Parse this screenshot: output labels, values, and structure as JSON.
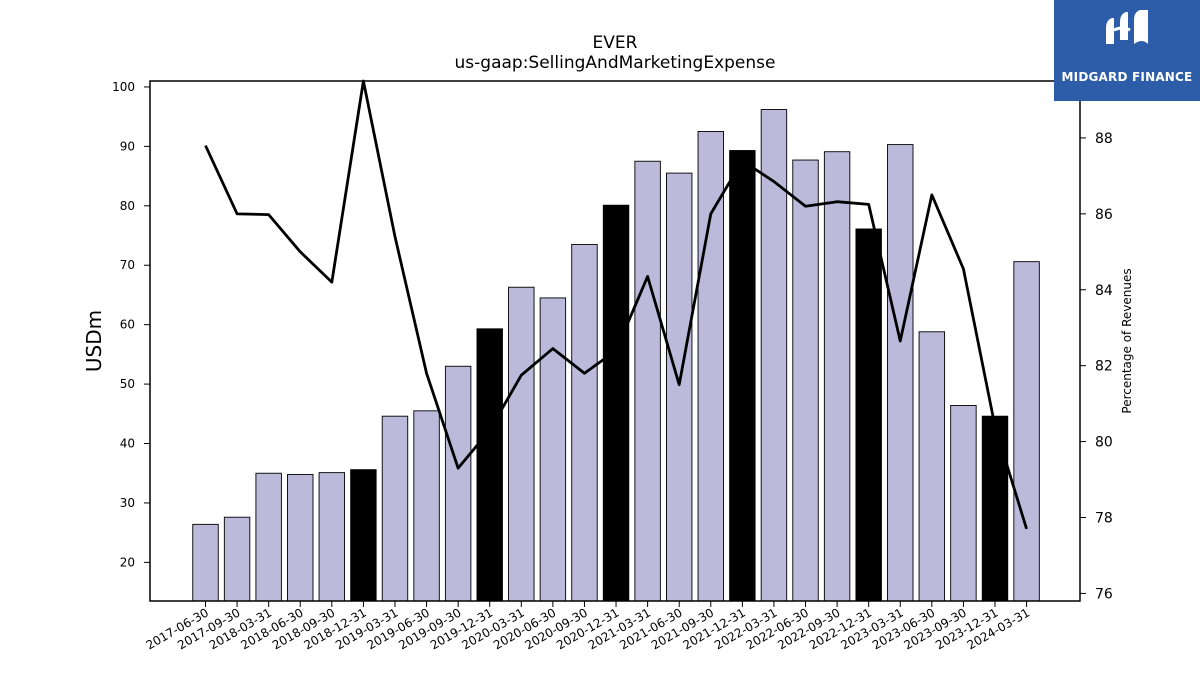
{
  "brand": {
    "name": "MIDGARD FINANCE",
    "color": "#2d5ca8"
  },
  "chart_data": {
    "type": "bar",
    "title": "EVER",
    "subtitle": "us-gaap:SellingAndMarketingExpense",
    "ylabel": "USDm",
    "y2label": "Percentage of Revenues",
    "ylim": [
      13.5,
      101
    ],
    "y2lim": [
      75.8,
      89.5
    ],
    "yticks": [
      20,
      30,
      40,
      50,
      60,
      70,
      80,
      90,
      100
    ],
    "y2ticks": [
      76,
      78,
      80,
      82,
      84,
      86,
      88
    ],
    "grid": false,
    "categories": [
      "2017-06-30",
      "2017-09-30",
      "2018-03-31",
      "2018-06-30",
      "2018-09-30",
      "2018-12-31",
      "2019-03-31",
      "2019-06-30",
      "2019-09-30",
      "2019-12-31",
      "2020-03-31",
      "2020-06-30",
      "2020-09-30",
      "2020-12-31",
      "2021-03-31",
      "2021-06-30",
      "2021-09-30",
      "2021-12-31",
      "2022-03-31",
      "2022-06-30",
      "2022-09-30",
      "2022-12-31",
      "2023-03-31",
      "2023-06-30",
      "2023-09-30",
      "2023-12-31",
      "2024-03-31"
    ],
    "series": [
      {
        "type": "bar",
        "axis": "left",
        "values": [
          26.4,
          27.6,
          35.0,
          34.8,
          35.1,
          35.6,
          44.6,
          45.5,
          53.0,
          59.3,
          66.3,
          64.5,
          73.5,
          80.1,
          87.5,
          85.5,
          92.5,
          89.3,
          96.2,
          87.7,
          89.1,
          76.1,
          90.3,
          58.8,
          46.4,
          44.6,
          70.6
        ],
        "highlight": [
          false,
          false,
          false,
          false,
          false,
          true,
          false,
          false,
          false,
          true,
          false,
          false,
          false,
          true,
          false,
          false,
          false,
          true,
          false,
          false,
          false,
          true,
          false,
          false,
          false,
          true,
          false
        ]
      },
      {
        "type": "line",
        "axis": "right",
        "values": [
          87.8,
          86.0,
          85.98,
          85.0,
          84.2,
          89.5,
          85.4,
          81.8,
          79.3,
          80.3,
          81.75,
          82.45,
          81.8,
          82.4,
          84.35,
          81.5,
          86.0,
          87.4,
          86.85,
          86.2,
          86.32,
          86.25,
          82.65,
          86.5,
          84.55,
          80.4,
          77.7
        ]
      }
    ],
    "colors": {
      "bar": "#bcb9da",
      "bar_highlight": "#000000",
      "line": "#000000"
    }
  }
}
